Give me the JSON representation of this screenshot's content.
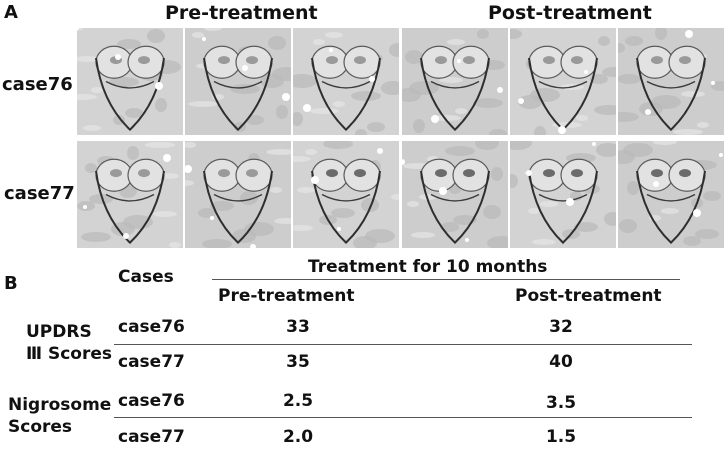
{
  "panel_a": {
    "letter": "A",
    "column_headers": [
      "Pre-treatment",
      "Post-treatment"
    ],
    "rows": [
      "case76",
      "case77"
    ]
  },
  "panel_b": {
    "letter": "B",
    "cases_header": "Cases",
    "group_header": "Treatment for 10 months",
    "sub_headers": [
      "Pre-treatment",
      "Post-treatment"
    ],
    "groups": [
      {
        "label_lines": [
          "UPDRS",
          "Ⅲ Scores"
        ],
        "rows": [
          {
            "case": "case76",
            "pre": "33",
            "post": "32"
          },
          {
            "case": "case77",
            "pre": "35",
            "post": "40"
          }
        ]
      },
      {
        "label_lines": [
          "Nigrosome",
          "Scores"
        ],
        "rows": [
          {
            "case": "case76",
            "pre": "2.5",
            "post": "3.5"
          },
          {
            "case": "case77",
            "pre": "2.0",
            "post": "1.5"
          }
        ]
      }
    ]
  }
}
